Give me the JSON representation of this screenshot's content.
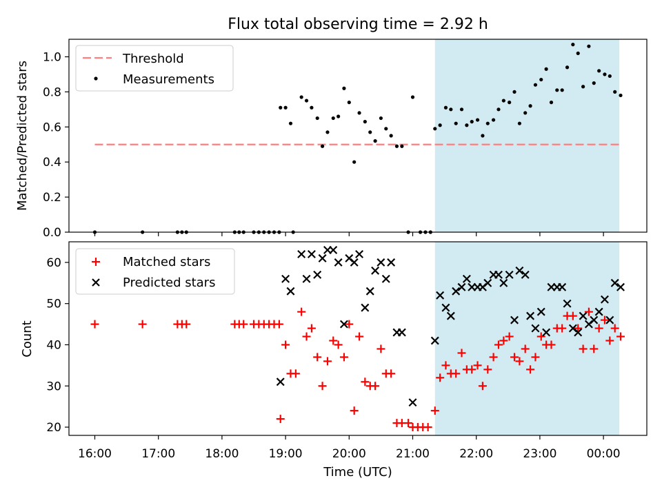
{
  "title": "Flux total observing time = 2.92 h",
  "colors": {
    "threshold": "#ff7f7f",
    "measurement": "#000000",
    "matched": "#ff0000",
    "predicted": "#000000",
    "highlight": "#add8e6"
  },
  "chart_data": [
    {
      "type": "scatter",
      "ylabel": "Matched/Predicted stars",
      "xlabel": "",
      "ylim": [
        0,
        1.1
      ],
      "x_unit": "hours since 16:00 UTC",
      "yticks": [
        "0.0",
        "0.2",
        "0.4",
        "0.6",
        "0.8",
        "1.0"
      ],
      "ytick_values": [
        0,
        0.2,
        0.4,
        0.6,
        0.8,
        1.0
      ],
      "legend": {
        "position": "top-left",
        "entries": [
          "Threshold",
          "Measurements"
        ]
      },
      "threshold": {
        "name": "Threshold",
        "value": 0.5,
        "x_range": [
          0,
          8.25
        ]
      },
      "highlight": {
        "x_range": [
          5.35,
          8.25
        ]
      },
      "series": [
        {
          "name": "Measurements",
          "marker": "dot",
          "points": [
            [
              0.0,
              0.0
            ],
            [
              0.75,
              0.0
            ],
            [
              1.3,
              0.0
            ],
            [
              1.37,
              0.0
            ],
            [
              1.44,
              0.0
            ],
            [
              2.2,
              0.0
            ],
            [
              2.27,
              0.0
            ],
            [
              2.34,
              0.0
            ],
            [
              2.5,
              0.0
            ],
            [
              2.58,
              0.0
            ],
            [
              2.66,
              0.0
            ],
            [
              2.74,
              0.0
            ],
            [
              2.82,
              0.0
            ],
            [
              2.9,
              0.0
            ],
            [
              3.12,
              0.0
            ],
            [
              4.93,
              0.0
            ],
            [
              5.12,
              0.0
            ],
            [
              5.2,
              0.0
            ],
            [
              5.28,
              0.0
            ],
            [
              2.92,
              0.71
            ],
            [
              3.0,
              0.71
            ],
            [
              3.08,
              0.62
            ],
            [
              3.25,
              0.77
            ],
            [
              3.33,
              0.75
            ],
            [
              3.41,
              0.71
            ],
            [
              3.5,
              0.65
            ],
            [
              3.58,
              0.49
            ],
            [
              3.66,
              0.57
            ],
            [
              3.75,
              0.65
            ],
            [
              3.83,
              0.66
            ],
            [
              3.92,
              0.82
            ],
            [
              4.0,
              0.74
            ],
            [
              4.08,
              0.4
            ],
            [
              4.16,
              0.68
            ],
            [
              4.25,
              0.63
            ],
            [
              4.33,
              0.57
            ],
            [
              4.41,
              0.52
            ],
            [
              4.5,
              0.65
            ],
            [
              4.58,
              0.59
            ],
            [
              4.66,
              0.55
            ],
            [
              4.75,
              0.49
            ],
            [
              4.83,
              0.49
            ],
            [
              5.0,
              0.77
            ],
            [
              5.35,
              0.59
            ],
            [
              5.43,
              0.61
            ],
            [
              5.52,
              0.71
            ],
            [
              5.6,
              0.7
            ],
            [
              5.68,
              0.62
            ],
            [
              5.77,
              0.7
            ],
            [
              5.85,
              0.61
            ],
            [
              5.93,
              0.63
            ],
            [
              6.02,
              0.64
            ],
            [
              6.1,
              0.55
            ],
            [
              6.18,
              0.62
            ],
            [
              6.27,
              0.64
            ],
            [
              6.35,
              0.7
            ],
            [
              6.43,
              0.75
            ],
            [
              6.52,
              0.74
            ],
            [
              6.6,
              0.8
            ],
            [
              6.68,
              0.62
            ],
            [
              6.77,
              0.68
            ],
            [
              6.85,
              0.72
            ],
            [
              6.93,
              0.84
            ],
            [
              7.02,
              0.87
            ],
            [
              7.1,
              0.93
            ],
            [
              7.18,
              0.74
            ],
            [
              7.27,
              0.81
            ],
            [
              7.35,
              0.81
            ],
            [
              7.43,
              0.94
            ],
            [
              7.52,
              1.07
            ],
            [
              7.6,
              1.02
            ],
            [
              7.68,
              0.83
            ],
            [
              7.77,
              1.06
            ],
            [
              7.85,
              0.85
            ],
            [
              7.93,
              0.92
            ],
            [
              8.02,
              0.9
            ],
            [
              8.1,
              0.89
            ],
            [
              8.18,
              0.8
            ],
            [
              8.27,
              0.78
            ]
          ]
        }
      ]
    },
    {
      "type": "scatter",
      "ylabel": "Count",
      "xlabel": "Time (UTC)",
      "ylim": [
        18,
        65
      ],
      "x_unit": "hours since 16:00 UTC",
      "yticks": [
        "20",
        "30",
        "40",
        "50",
        "60"
      ],
      "ytick_values": [
        20,
        30,
        40,
        50,
        60
      ],
      "xticks": [
        "16:00",
        "17:00",
        "18:00",
        "19:00",
        "20:00",
        "21:00",
        "22:00",
        "23:00",
        "00:00"
      ],
      "xtick_values": [
        0,
        1,
        2,
        3,
        4,
        5,
        6,
        7,
        8
      ],
      "legend": {
        "position": "top-left",
        "entries": [
          "Matched stars",
          "Predicted stars"
        ]
      },
      "highlight": {
        "x_range": [
          5.35,
          8.25
        ]
      },
      "series": [
        {
          "name": "Matched stars",
          "marker": "plus",
          "points": [
            [
              0.0,
              45
            ],
            [
              0.75,
              45
            ],
            [
              1.3,
              45
            ],
            [
              1.37,
              45
            ],
            [
              1.44,
              45
            ],
            [
              2.2,
              45
            ],
            [
              2.27,
              45
            ],
            [
              2.34,
              45
            ],
            [
              2.5,
              45
            ],
            [
              2.58,
              45
            ],
            [
              2.66,
              45
            ],
            [
              2.74,
              45
            ],
            [
              2.82,
              45
            ],
            [
              2.9,
              45
            ],
            [
              2.92,
              22
            ],
            [
              3.0,
              40
            ],
            [
              3.08,
              33
            ],
            [
              3.16,
              33
            ],
            [
              3.25,
              48
            ],
            [
              3.33,
              42
            ],
            [
              3.41,
              44
            ],
            [
              3.5,
              37
            ],
            [
              3.58,
              30
            ],
            [
              3.66,
              36
            ],
            [
              3.75,
              41
            ],
            [
              3.83,
              40
            ],
            [
              3.92,
              37
            ],
            [
              4.0,
              45
            ],
            [
              4.08,
              24
            ],
            [
              4.16,
              42
            ],
            [
              4.25,
              31
            ],
            [
              4.33,
              30
            ],
            [
              4.41,
              30
            ],
            [
              4.5,
              39
            ],
            [
              4.58,
              33
            ],
            [
              4.66,
              33
            ],
            [
              4.75,
              21
            ],
            [
              4.83,
              21
            ],
            [
              4.93,
              21
            ],
            [
              5.0,
              20
            ],
            [
              5.08,
              20
            ],
            [
              5.16,
              20
            ],
            [
              5.24,
              20
            ],
            [
              5.35,
              24
            ],
            [
              5.43,
              32
            ],
            [
              5.52,
              35
            ],
            [
              5.6,
              33
            ],
            [
              5.68,
              33
            ],
            [
              5.77,
              38
            ],
            [
              5.85,
              34
            ],
            [
              5.93,
              34
            ],
            [
              6.02,
              35
            ],
            [
              6.1,
              30
            ],
            [
              6.18,
              34
            ],
            [
              6.27,
              37
            ],
            [
              6.35,
              40
            ],
            [
              6.43,
              41
            ],
            [
              6.52,
              42
            ],
            [
              6.6,
              37
            ],
            [
              6.68,
              36
            ],
            [
              6.77,
              39
            ],
            [
              6.85,
              34
            ],
            [
              6.93,
              37
            ],
            [
              7.02,
              42
            ],
            [
              7.1,
              40
            ],
            [
              7.18,
              40
            ],
            [
              7.27,
              44
            ],
            [
              7.35,
              44
            ],
            [
              7.43,
              47
            ],
            [
              7.52,
              47
            ],
            [
              7.6,
              44
            ],
            [
              7.68,
              39
            ],
            [
              7.77,
              48
            ],
            [
              7.85,
              39
            ],
            [
              7.93,
              44
            ],
            [
              8.02,
              46
            ],
            [
              8.1,
              41
            ],
            [
              8.18,
              44
            ],
            [
              8.27,
              42
            ]
          ]
        },
        {
          "name": "Predicted stars",
          "marker": "x",
          "points": [
            [
              2.92,
              31
            ],
            [
              3.0,
              56
            ],
            [
              3.08,
              53
            ],
            [
              3.25,
              62
            ],
            [
              3.33,
              56
            ],
            [
              3.41,
              62
            ],
            [
              3.5,
              57
            ],
            [
              3.58,
              61
            ],
            [
              3.66,
              63
            ],
            [
              3.75,
              63
            ],
            [
              3.83,
              60
            ],
            [
              3.92,
              45
            ],
            [
              4.0,
              61
            ],
            [
              4.08,
              60
            ],
            [
              4.16,
              62
            ],
            [
              4.25,
              49
            ],
            [
              4.33,
              53
            ],
            [
              4.41,
              58
            ],
            [
              4.5,
              60
            ],
            [
              4.58,
              56
            ],
            [
              4.66,
              60
            ],
            [
              4.75,
              43
            ],
            [
              4.83,
              43
            ],
            [
              5.0,
              26
            ],
            [
              5.35,
              41
            ],
            [
              5.43,
              52
            ],
            [
              5.52,
              49
            ],
            [
              5.6,
              47
            ],
            [
              5.68,
              53
            ],
            [
              5.77,
              54
            ],
            [
              5.85,
              56
            ],
            [
              5.93,
              54
            ],
            [
              6.02,
              54
            ],
            [
              6.1,
              54
            ],
            [
              6.18,
              55
            ],
            [
              6.27,
              57
            ],
            [
              6.35,
              57
            ],
            [
              6.43,
              55
            ],
            [
              6.52,
              57
            ],
            [
              6.6,
              46
            ],
            [
              6.68,
              58
            ],
            [
              6.77,
              57
            ],
            [
              6.85,
              47
            ],
            [
              6.93,
              44
            ],
            [
              7.02,
              48
            ],
            [
              7.1,
              43
            ],
            [
              7.18,
              54
            ],
            [
              7.27,
              54
            ],
            [
              7.35,
              54
            ],
            [
              7.43,
              50
            ],
            [
              7.52,
              44
            ],
            [
              7.6,
              43
            ],
            [
              7.68,
              47
            ],
            [
              7.77,
              45
            ],
            [
              7.85,
              46
            ],
            [
              7.93,
              48
            ],
            [
              8.02,
              51
            ],
            [
              8.1,
              46
            ],
            [
              8.18,
              55
            ],
            [
              8.27,
              54
            ]
          ]
        }
      ]
    }
  ]
}
